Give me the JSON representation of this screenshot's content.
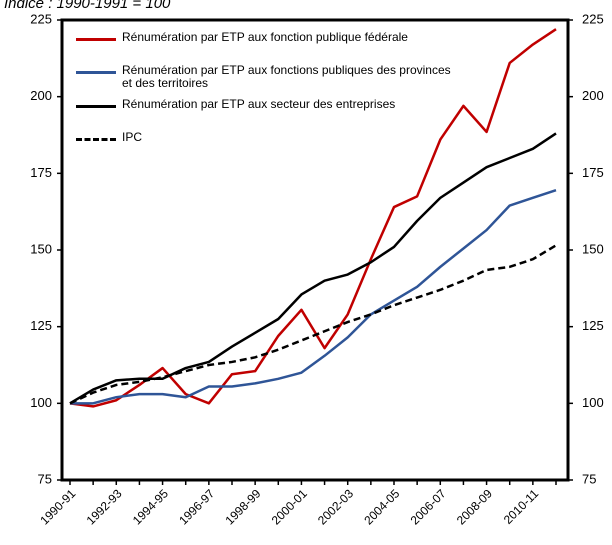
{
  "chart_data": {
    "type": "line",
    "title": "Indice : 1990-1991 = 100",
    "categories": [
      "1990-91",
      null,
      "1992-93",
      null,
      "1994-95",
      null,
      "1996-97",
      null,
      "1998-99",
      null,
      "2000-01",
      null,
      "2002-03",
      null,
      "2004-05",
      null,
      "2006-07",
      null,
      "2008-09",
      null,
      "2010-11",
      null
    ],
    "series": [
      {
        "name": "Rénumération par ETP aux fonction publique fédérale",
        "color": "#c00000",
        "values": [
          100,
          99,
          101,
          106,
          111.5,
          103,
          100,
          109.5,
          110.5,
          122,
          130.5,
          118,
          129,
          147,
          164,
          167.5,
          186,
          197,
          188.5,
          211,
          217,
          222
        ]
      },
      {
        "name": "Rénumération par ETP aux fonctions publiques des provinces et des territoires",
        "color": "#2f5597",
        "values": [
          100,
          100,
          102,
          103,
          103,
          102,
          105.5,
          105.5,
          106.5,
          108,
          110,
          115.5,
          121.5,
          129,
          133.5,
          138,
          144.5,
          150.5,
          156.5,
          164.5,
          167,
          169.5
        ]
      },
      {
        "name": "Rénumération par ETP aux secteur des entreprises",
        "color": "#000000",
        "values": [
          100,
          104.5,
          107.5,
          108,
          108,
          111.5,
          113.5,
          118.5,
          123,
          127.5,
          135.5,
          140,
          142,
          146,
          151,
          159.5,
          167,
          172,
          177,
          180,
          183,
          188
        ]
      },
      {
        "name": "IPC",
        "color": "#000000",
        "dashed": true,
        "values": [
          100,
          103.5,
          106,
          107,
          108.5,
          110.5,
          112.5,
          113.5,
          115,
          117.5,
          120.5,
          123.5,
          126.5,
          129,
          132,
          134.5,
          137,
          140,
          143.5,
          144.5,
          147,
          151.5
        ]
      }
    ],
    "ylim": [
      75,
      225
    ],
    "yticks": [
      75,
      100,
      125,
      150,
      175,
      200,
      225
    ],
    "y2lim": [
      75,
      225
    ],
    "y2ticks": [
      75,
      100,
      125,
      150,
      175,
      200,
      225
    ]
  }
}
